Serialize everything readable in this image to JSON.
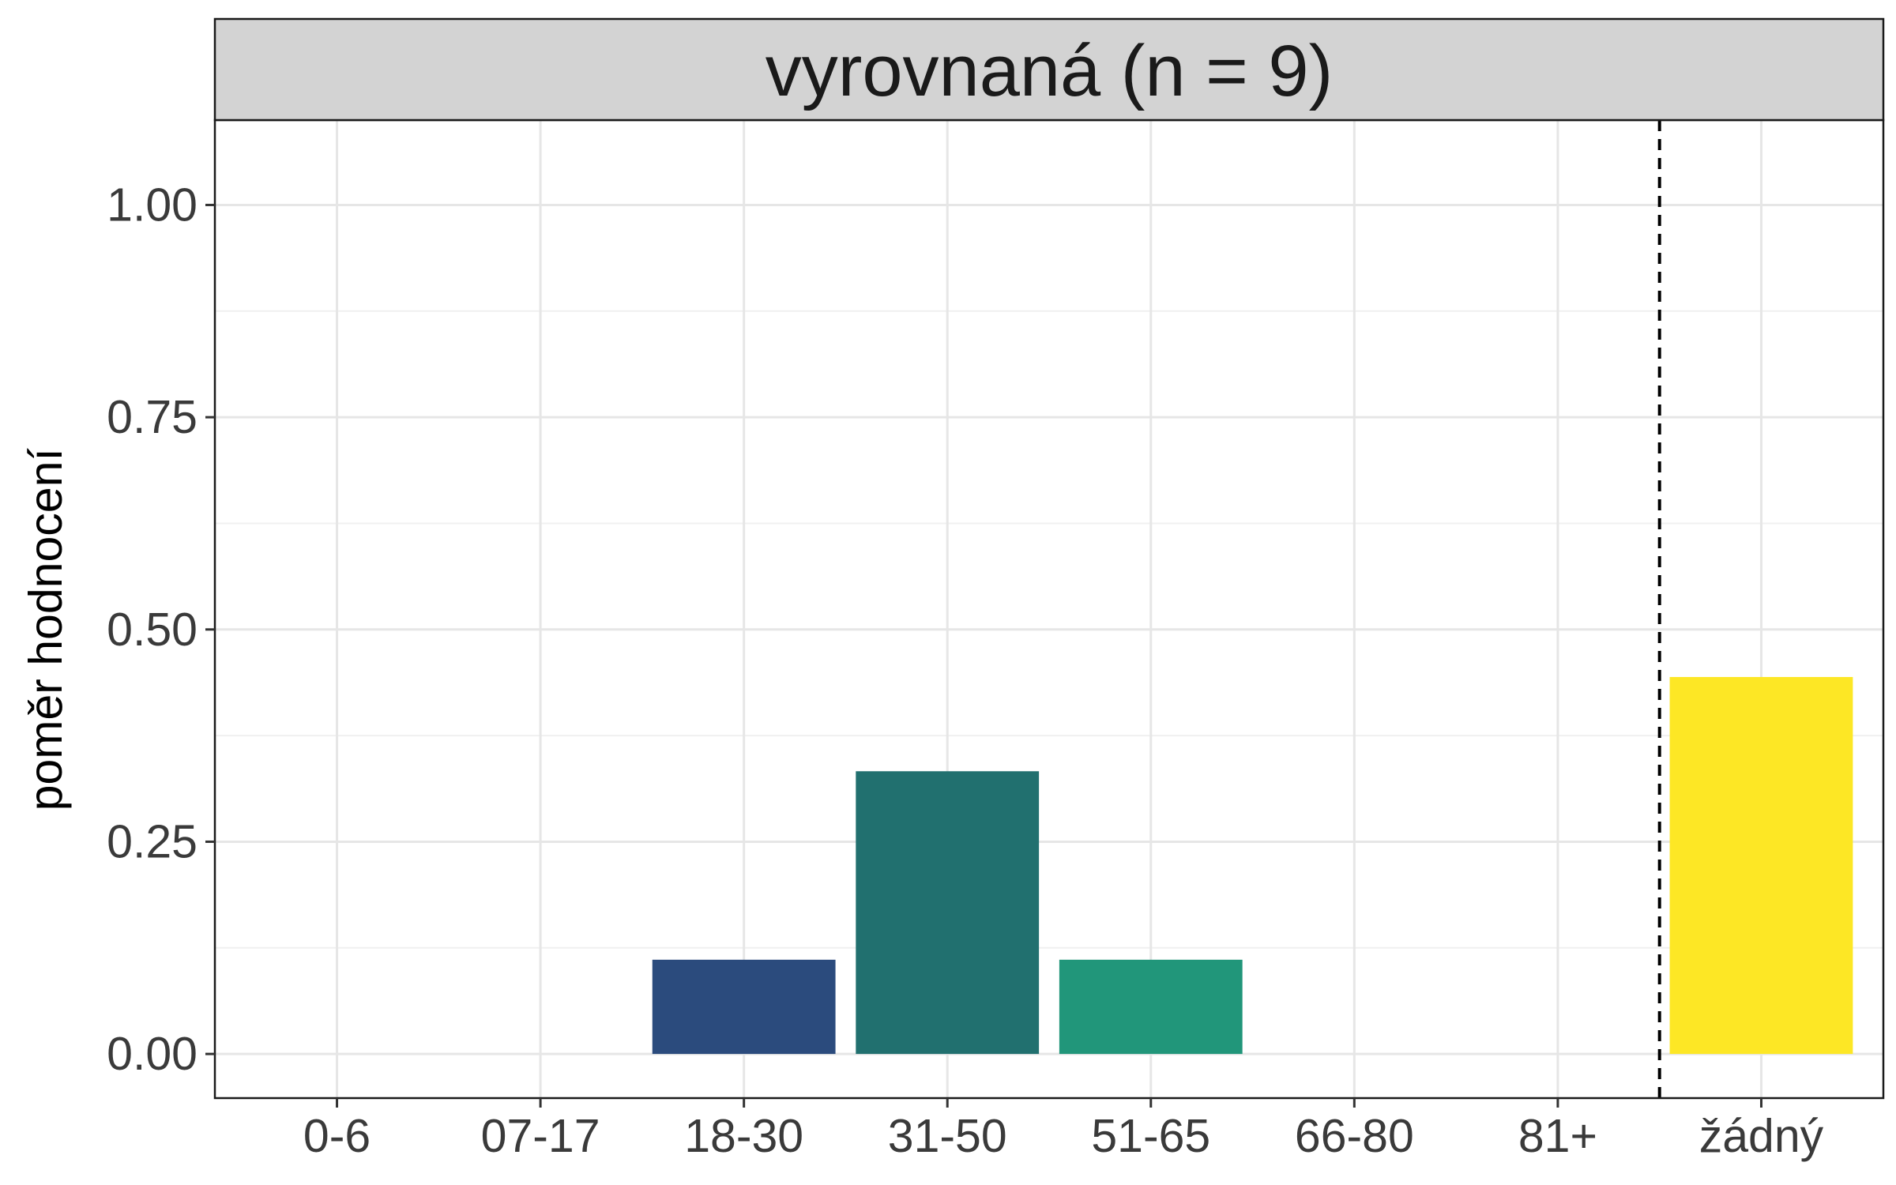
{
  "chart_data": {
    "type": "bar",
    "facet_title": "vyrovnaná (n = 9)",
    "categories": [
      "0-6",
      "07-17",
      "18-30",
      "31-50",
      "51-65",
      "66-80",
      "81+",
      "žádný"
    ],
    "values": [
      0,
      0,
      0.111,
      0.333,
      0.111,
      0,
      0,
      0.444
    ],
    "colors": [
      "#440154",
      "#46337e",
      "#2b4b7d",
      "#21706f",
      "#21967a",
      "#5ec962",
      "#addc30",
      "#fde725"
    ],
    "ylabel": "poměr hodnocení",
    "xlabel": "",
    "ylim": [
      -0.052,
      1.1
    ],
    "yticks": [
      0,
      0.25,
      0.5,
      0.75,
      1.0
    ],
    "ytick_labels": [
      "0.00",
      "0.25",
      "0.50",
      "0.75",
      "1.00"
    ],
    "reference_line": {
      "between": [
        "81+",
        "žádný"
      ],
      "style": "dashed"
    },
    "grid": true,
    "legend": "none"
  }
}
